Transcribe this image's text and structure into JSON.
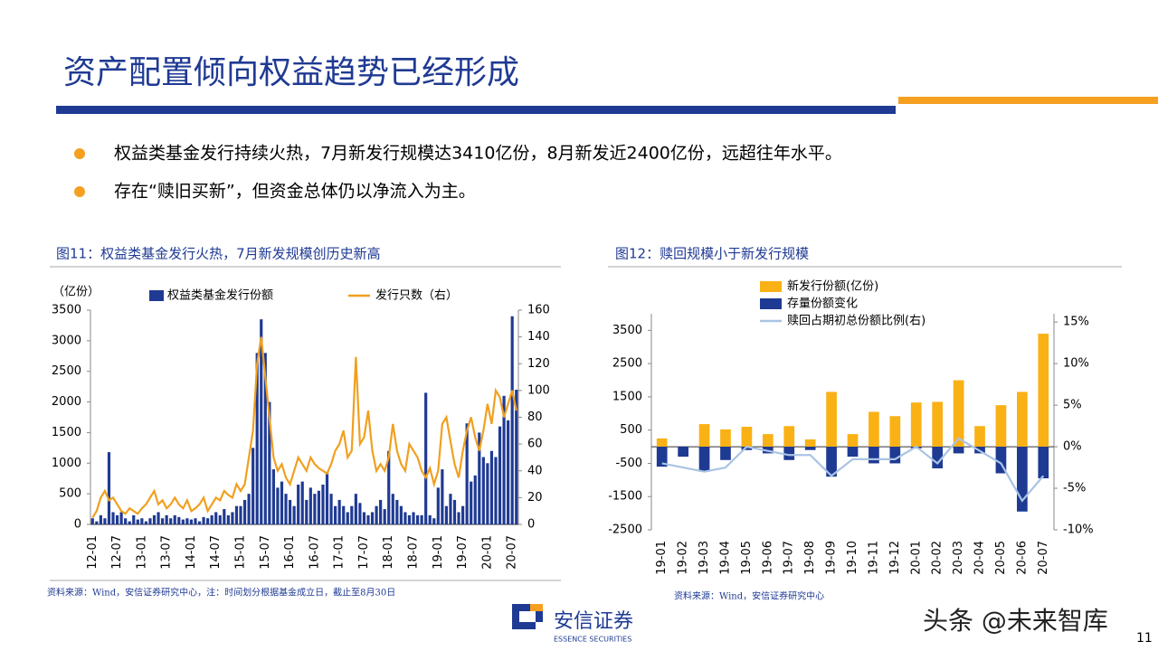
{
  "header": {
    "title": "资产配置倾向权益趋势已经形成"
  },
  "bullets": [
    "权益类基金发行持续火热，7月新发行规模达3410亿份，8月新发近2400亿份，远超往年水平。",
    "存在“赎旧买新”，但资金总体仍以净流入为主。"
  ],
  "chart_data": [
    {
      "type": "combo",
      "title": "图11：权益类基金发行火热，7月新发规模创历史新高",
      "y_label": "（亿份）",
      "legend": "top",
      "categories": [
        "12-01",
        null,
        null,
        null,
        null,
        null,
        "12-07",
        null,
        null,
        null,
        null,
        null,
        "13-01",
        null,
        null,
        null,
        null,
        null,
        "13-07",
        null,
        null,
        null,
        null,
        null,
        "14-01",
        null,
        null,
        null,
        null,
        null,
        "14-07",
        null,
        null,
        null,
        null,
        null,
        "15-01",
        null,
        null,
        null,
        null,
        null,
        "15-07",
        null,
        null,
        null,
        null,
        null,
        "16-01",
        null,
        null,
        null,
        null,
        null,
        "16-07",
        null,
        null,
        null,
        null,
        null,
        "17-01",
        null,
        null,
        null,
        null,
        null,
        "17-07",
        null,
        null,
        null,
        null,
        null,
        "18-01",
        null,
        null,
        null,
        null,
        null,
        "18-07",
        null,
        null,
        null,
        null,
        null,
        "19-01",
        null,
        null,
        null,
        null,
        null,
        "19-07",
        null,
        null,
        null,
        null,
        null,
        "20-01",
        null,
        null,
        null,
        null,
        null,
        "20-07",
        null
      ],
      "series": [
        {
          "name": "权益类基金发行份额",
          "type": "bar",
          "color": "#1f3a93",
          "values": [
            100,
            50,
            150,
            100,
            1180,
            200,
            150,
            200,
            100,
            50,
            150,
            80,
            100,
            50,
            100,
            150,
            200,
            100,
            150,
            100,
            150,
            120,
            80,
            100,
            80,
            100,
            50,
            120,
            100,
            150,
            200,
            150,
            250,
            150,
            200,
            300,
            300,
            400,
            500,
            1250,
            2800,
            3350,
            2800,
            2000,
            900,
            600,
            700,
            500,
            400,
            300,
            650,
            700,
            400,
            600,
            500,
            550,
            650,
            850,
            500,
            300,
            400,
            300,
            200,
            300,
            500,
            350,
            200,
            150,
            200,
            300,
            400,
            250,
            1200,
            500,
            400,
            300,
            200,
            150,
            200,
            150,
            150,
            2150,
            150,
            100,
            600,
            900,
            300,
            500,
            400,
            200,
            300,
            1650,
            700,
            800,
            1500,
            1100,
            1000,
            1200,
            1100,
            1600,
            2100,
            1700,
            3400,
            2200
          ]
        },
        {
          "name": "发行只数（右）",
          "type": "line",
          "axis": "y2",
          "color": "#f0a020",
          "values": [
            5,
            10,
            20,
            25,
            18,
            20,
            15,
            10,
            8,
            12,
            10,
            8,
            12,
            15,
            20,
            25,
            15,
            18,
            12,
            15,
            20,
            15,
            12,
            18,
            10,
            12,
            15,
            20,
            10,
            15,
            20,
            18,
            25,
            22,
            20,
            30,
            25,
            30,
            50,
            70,
            120,
            140,
            110,
            80,
            50,
            40,
            45,
            35,
            30,
            40,
            50,
            45,
            40,
            50,
            45,
            42,
            40,
            38,
            45,
            55,
            60,
            70,
            50,
            55,
            125,
            60,
            65,
            85,
            55,
            40,
            45,
            40,
            50,
            75,
            55,
            45,
            40,
            60,
            55,
            50,
            40,
            35,
            42,
            30,
            40,
            75,
            80,
            62,
            45,
            35,
            55,
            70,
            80,
            65,
            55,
            70,
            90,
            75,
            100,
            95,
            80,
            90,
            100,
            85
          ]
        }
      ],
      "ylim": [
        0,
        3500
      ],
      "yticks": [
        0,
        500,
        1000,
        1500,
        2000,
        2500,
        3000,
        3500
      ],
      "y2lim": [
        0,
        160
      ],
      "y2ticks": [
        0,
        20,
        40,
        60,
        80,
        100,
        120,
        140,
        160
      ],
      "source": "资料来源：Wind，安信证券研究中心，注：时间划分根据基金成立日，截止至8月30日"
    },
    {
      "type": "combo",
      "title": "图12：赎回规模小于新发行规模",
      "legend": "top-left",
      "categories": [
        "19-01",
        "19-02",
        "19-03",
        "19-04",
        "19-05",
        "19-06",
        "19-07",
        "19-08",
        "19-09",
        "19-10",
        "19-11",
        "19-12",
        "20-01",
        "20-02",
        "20-03",
        "20-04",
        "20-05",
        "20-06",
        "20-07"
      ],
      "series": [
        {
          "name": "新发行份额(亿份)",
          "type": "bar",
          "color": "#f9b115",
          "values": [
            250,
            0,
            680,
            520,
            600,
            380,
            620,
            220,
            1650,
            380,
            1050,
            920,
            1330,
            1350,
            2000,
            620,
            1250,
            1650,
            3400
          ]
        },
        {
          "name": "存量份额变化",
          "type": "bar",
          "color": "#1f3a93",
          "values": [
            -600,
            -300,
            -750,
            -400,
            -100,
            -200,
            -400,
            -100,
            -900,
            -300,
            -500,
            -500,
            -50,
            -650,
            -200,
            -200,
            -800,
            -1950,
            -950
          ]
        },
        {
          "name": "赎回占期初总份额比例(右)",
          "type": "line",
          "axis": "y2",
          "color": "#a9c4e4",
          "values": [
            -2,
            -2.5,
            -3,
            -2.5,
            0,
            -0.5,
            -1,
            -1,
            -3.5,
            -1.5,
            -1.5,
            -1.5,
            0,
            -2,
            1,
            -0.5,
            -2,
            -6.5,
            -3.5
          ]
        }
      ],
      "ylim": [
        -2500,
        4000
      ],
      "yticks": [
        -2500,
        -1500,
        -500,
        500,
        1500,
        2500,
        3500
      ],
      "y2lim": [
        -10,
        16
      ],
      "y2ticks": [
        {
          "value": -10,
          "label": "-10%"
        },
        {
          "value": -5,
          "label": "-5%"
        },
        {
          "value": 0,
          "label": "0%"
        },
        {
          "value": 5,
          "label": "5%"
        },
        {
          "value": 10,
          "label": "10%"
        },
        {
          "value": 15,
          "label": "15%"
        }
      ],
      "source": "资料来源：Wind，安信证券研究中心"
    }
  ],
  "footer": {
    "logo": "安信证券",
    "logo_en": "ESSENCE SECURITIES",
    "watermark": "头条 @未来智库",
    "page": "11"
  }
}
